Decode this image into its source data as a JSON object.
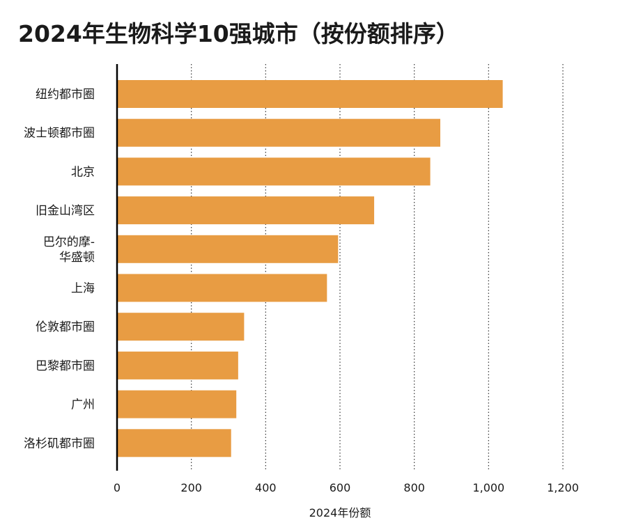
{
  "title": "2024年生物科学10强城市（按份额排序）",
  "colors": {
    "bar": "#E89C43",
    "axis": "#000000",
    "grid": "#333333"
  },
  "chart_data": {
    "type": "bar",
    "orientation": "horizontal",
    "title": "2024年生物科学10强城市（按份额排序）",
    "xlabel": "2024年份额",
    "ylabel": "",
    "xlim": [
      0,
      1200
    ],
    "xticks": [
      0,
      200,
      400,
      600,
      800,
      1000,
      1200
    ],
    "xtick_labels": [
      "0",
      "200",
      "400",
      "600",
      "800",
      "1,000",
      "1,200"
    ],
    "grid": "vertical dotted",
    "categories": [
      [
        "纽约都市圈"
      ],
      [
        "波士顿都市圈"
      ],
      [
        "北京"
      ],
      [
        "旧金山湾区"
      ],
      [
        "巴尔的摩-",
        "华盛顿"
      ],
      [
        "上海"
      ],
      [
        "伦敦都市圈"
      ],
      [
        "巴黎都市圈"
      ],
      [
        "广州"
      ],
      [
        "洛杉矶都市圈"
      ]
    ],
    "values": [
      1038,
      870,
      843,
      692,
      595,
      565,
      342,
      326,
      321,
      307
    ]
  }
}
